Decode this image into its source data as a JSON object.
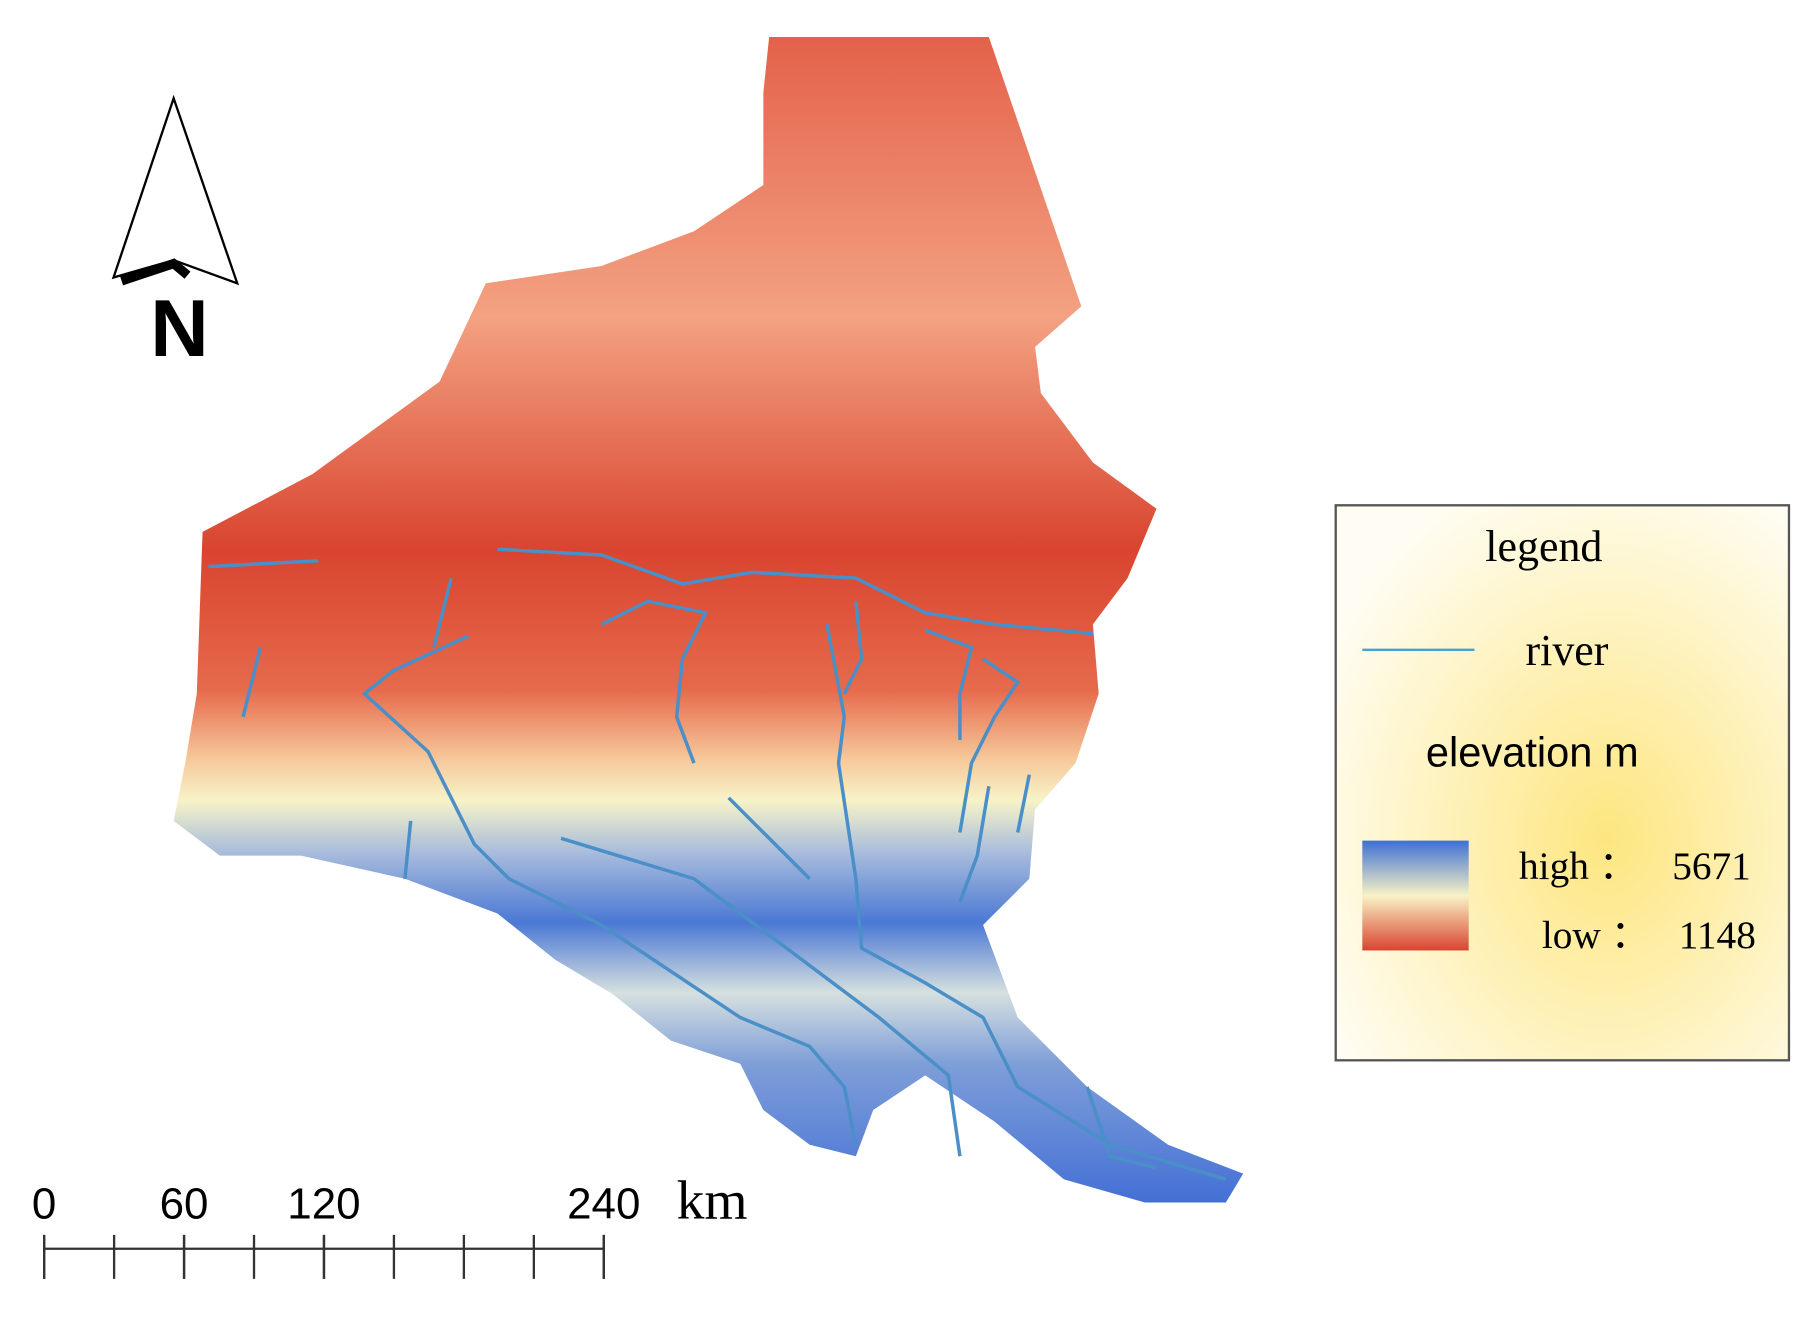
{
  "north_arrow": {
    "label": "N"
  },
  "scale_bar": {
    "ticks": [
      0,
      60,
      120,
      240
    ],
    "unit": "km"
  },
  "legend": {
    "title": "legend",
    "river": "river",
    "elevation": "elevation m",
    "high": {
      "label": "high ：",
      "value": 5671
    },
    "low": {
      "label": "low ：",
      "value": 1148
    }
  }
}
